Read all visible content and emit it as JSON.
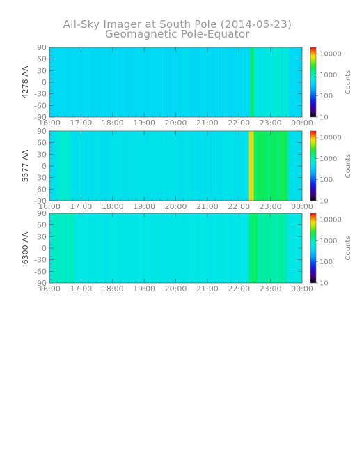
{
  "chart_data": {
    "type": "heatmap",
    "title": "All-Sky Imager at South Pole (2014-05-23)",
    "subtitle": "Geomagnetic Pole-Equator",
    "x_ticks": [
      "16:00",
      "17:00",
      "18:00",
      "19:00",
      "20:00",
      "21:00",
      "22:00",
      "23:00",
      "00:00"
    ],
    "x_range_hours": [
      16,
      24
    ],
    "y_ticks": [
      "90",
      "60",
      "30",
      "0",
      "-30",
      "-60",
      "-90"
    ],
    "y_range": [
      -90,
      90
    ],
    "colorbar": {
      "title": "Counts",
      "scale": "log",
      "ticks": [
        "10000",
        "1000",
        "100",
        "10"
      ],
      "range": [
        10,
        20000
      ]
    },
    "panels": [
      {
        "ylabel": "4278 AA",
        "base_log10": 2.62,
        "events": [
          {
            "start": 22.37,
            "end": 22.47,
            "log10": 3.3
          },
          {
            "start": 22.47,
            "end": 23.6,
            "log10": 2.78
          }
        ]
      },
      {
        "ylabel": "5577 AA",
        "base_log10": 2.7,
        "events": [
          {
            "start": 16.2,
            "end": 16.65,
            "log10": 2.85
          },
          {
            "start": 22.32,
            "end": 22.47,
            "log10": 3.85
          },
          {
            "start": 22.47,
            "end": 23.55,
            "log10": 3.3
          }
        ]
      },
      {
        "ylabel": "6300 AA",
        "base_log10": 2.75,
        "events": [
          {
            "start": 16.1,
            "end": 16.8,
            "log10": 2.95
          },
          {
            "start": 22.32,
            "end": 22.6,
            "log10": 3.2
          },
          {
            "start": 22.6,
            "end": 23.5,
            "log10": 3.05
          }
        ]
      }
    ]
  }
}
